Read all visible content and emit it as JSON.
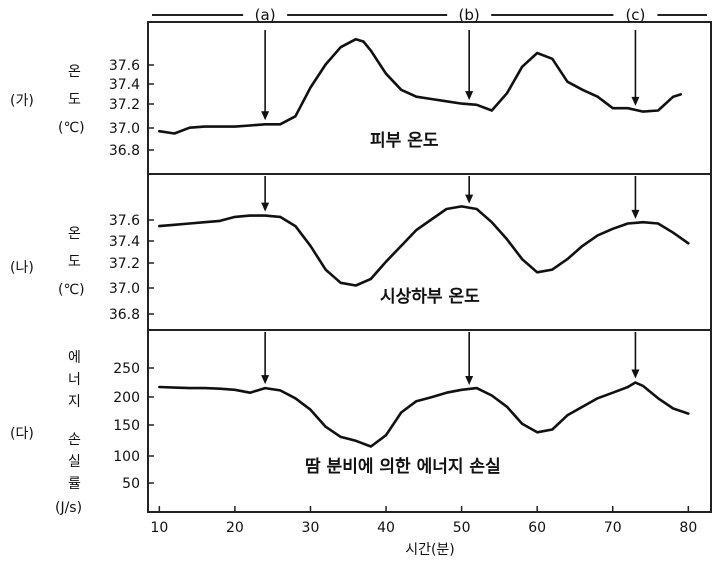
{
  "chart_data": [
    {
      "type": "line",
      "panel_label": "(가)",
      "ylabel_lines": [
        "온",
        "도",
        "(℃)"
      ],
      "annotation": "피부 온도",
      "yticks": [
        "37.6",
        "37.4",
        "37.2",
        "37.0",
        "36.8"
      ],
      "ylim": [
        36.6,
        37.8
      ],
      "x": [
        10,
        12,
        14,
        16,
        18,
        20,
        22,
        24,
        26,
        28,
        30,
        32,
        34,
        36,
        37,
        38,
        40,
        42,
        44,
        46,
        48,
        50,
        52,
        54,
        56,
        58,
        60,
        62,
        64,
        66,
        68,
        70,
        72,
        74,
        76,
        78,
        79
      ],
      "values": [
        36.92,
        36.9,
        36.95,
        36.96,
        36.96,
        36.96,
        36.97,
        36.98,
        36.98,
        37.05,
        37.3,
        37.5,
        37.65,
        37.72,
        37.7,
        37.62,
        37.42,
        37.28,
        37.22,
        37.2,
        37.18,
        37.16,
        37.15,
        37.1,
        37.25,
        37.48,
        37.6,
        37.55,
        37.35,
        37.28,
        37.22,
        37.12,
        37.12,
        37.09,
        37.1,
        37.22,
        37.24
      ]
    },
    {
      "type": "line",
      "panel_label": "(나)",
      "ylabel_lines": [
        "온",
        "도",
        "(℃)"
      ],
      "annotation": "시상하부 온도",
      "yticks": [
        "37.6",
        "37.4",
        "37.2",
        "37.0",
        "36.8"
      ],
      "ylim": [
        36.7,
        37.8
      ],
      "x": [
        10,
        12,
        14,
        16,
        18,
        20,
        22,
        24,
        26,
        28,
        30,
        32,
        34,
        36,
        38,
        40,
        42,
        44,
        46,
        48,
        50,
        52,
        54,
        56,
        58,
        60,
        62,
        64,
        66,
        68,
        70,
        72,
        74,
        76,
        78,
        80
      ],
      "values": [
        37.45,
        37.46,
        37.47,
        37.48,
        37.49,
        37.52,
        37.53,
        37.53,
        37.52,
        37.45,
        37.3,
        37.12,
        37.02,
        37.0,
        37.05,
        37.18,
        37.3,
        37.42,
        37.5,
        37.58,
        37.6,
        37.58,
        37.48,
        37.35,
        37.2,
        37.1,
        37.12,
        37.2,
        37.3,
        37.38,
        37.43,
        37.47,
        37.48,
        37.47,
        37.4,
        37.32
      ]
    },
    {
      "type": "line",
      "panel_label": "(다)",
      "ylabel_lines": [
        "에",
        "너",
        "지",
        "",
        "손",
        "실",
        "률",
        "(J/s)"
      ],
      "annotation": "땀 분비에 의한 에너지 손실",
      "yticks": [
        "250",
        "200",
        "150",
        "100",
        "50"
      ],
      "ylim": [
        0,
        300
      ],
      "xticks": [
        "10",
        "20",
        "30",
        "40",
        "50",
        "60",
        "70",
        "80"
      ],
      "xlabel": "시간(분)",
      "x": [
        10,
        12,
        14,
        16,
        18,
        20,
        22,
        24,
        26,
        28,
        30,
        32,
        34,
        36,
        38,
        40,
        42,
        44,
        46,
        48,
        50,
        52,
        54,
        56,
        58,
        60,
        62,
        64,
        66,
        68,
        70,
        72,
        73,
        74,
        76,
        78,
        80
      ],
      "values": [
        210,
        209,
        208,
        208,
        207,
        205,
        200,
        208,
        204,
        190,
        170,
        140,
        122,
        115,
        105,
        125,
        165,
        185,
        192,
        200,
        205,
        208,
        195,
        175,
        145,
        130,
        135,
        160,
        175,
        190,
        200,
        210,
        218,
        212,
        190,
        172,
        163
      ]
    }
  ],
  "markers": [
    {
      "label": "(a)",
      "x": 24
    },
    {
      "label": "(b)",
      "x": 51
    },
    {
      "label": "(c)",
      "x": 73
    }
  ]
}
